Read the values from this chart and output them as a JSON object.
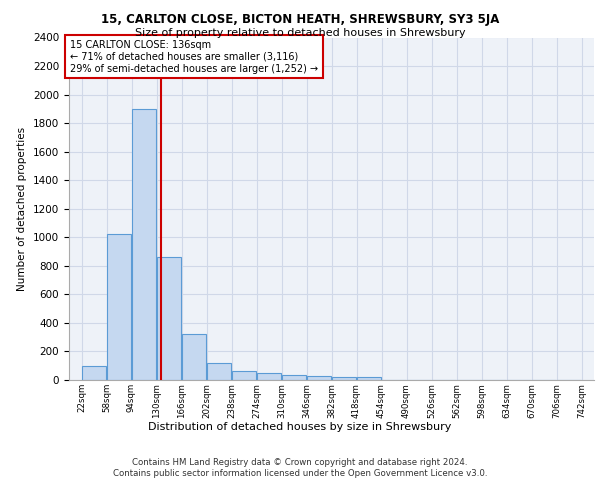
{
  "title1": "15, CARLTON CLOSE, BICTON HEATH, SHREWSBURY, SY3 5JA",
  "title2": "Size of property relative to detached houses in Shrewsbury",
  "xlabel": "Distribution of detached houses by size in Shrewsbury",
  "ylabel": "Number of detached properties",
  "footer1": "Contains HM Land Registry data © Crown copyright and database right 2024.",
  "footer2": "Contains public sector information licensed under the Open Government Licence v3.0.",
  "annotation_line1": "15 CARLTON CLOSE: 136sqm",
  "annotation_line2": "← 71% of detached houses are smaller (3,116)",
  "annotation_line3": "29% of semi-detached houses are larger (1,252) →",
  "subject_value": 136,
  "bar_edges": [
    22,
    58,
    94,
    130,
    166,
    202,
    238,
    274,
    310,
    346,
    382,
    418,
    454,
    490,
    526,
    562,
    598,
    634,
    670,
    706,
    742
  ],
  "bar_heights": [
    100,
    1020,
    1900,
    860,
    320,
    120,
    60,
    50,
    35,
    25,
    20,
    20,
    0,
    0,
    0,
    0,
    0,
    0,
    0,
    0
  ],
  "bar_color": "#c5d8f0",
  "bar_edge_color": "#5b9bd5",
  "grid_color": "#d0d8e8",
  "bg_color": "#eef2f8",
  "red_line_color": "#cc0000",
  "annotation_box_color": "#cc0000",
  "ylim": [
    0,
    2400
  ],
  "yticks": [
    0,
    200,
    400,
    600,
    800,
    1000,
    1200,
    1400,
    1600,
    1800,
    2000,
    2200,
    2400
  ]
}
